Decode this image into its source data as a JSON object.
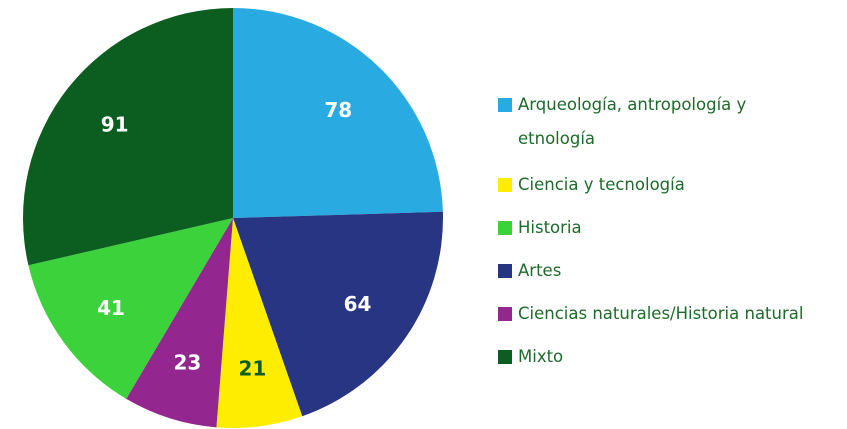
{
  "chart_data": {
    "type": "pie",
    "categories": [
      "Arqueología, antropología y etnología",
      "Artes",
      "Ciencia y tecnología",
      "Ciencias naturales/Historia natural",
      "Historia",
      "Mixto"
    ],
    "values": [
      78,
      64,
      21,
      23,
      41,
      91
    ],
    "colors": [
      "#29abe2",
      "#283583",
      "#ffed00",
      "#93278f",
      "#3cd23c",
      "#0b5e1f"
    ],
    "label_colors": [
      "#ffffff",
      "#ffffff",
      "#0b5e1f",
      "#ffffff",
      "#ffffff",
      "#ffffff"
    ],
    "legend": "right"
  }
}
